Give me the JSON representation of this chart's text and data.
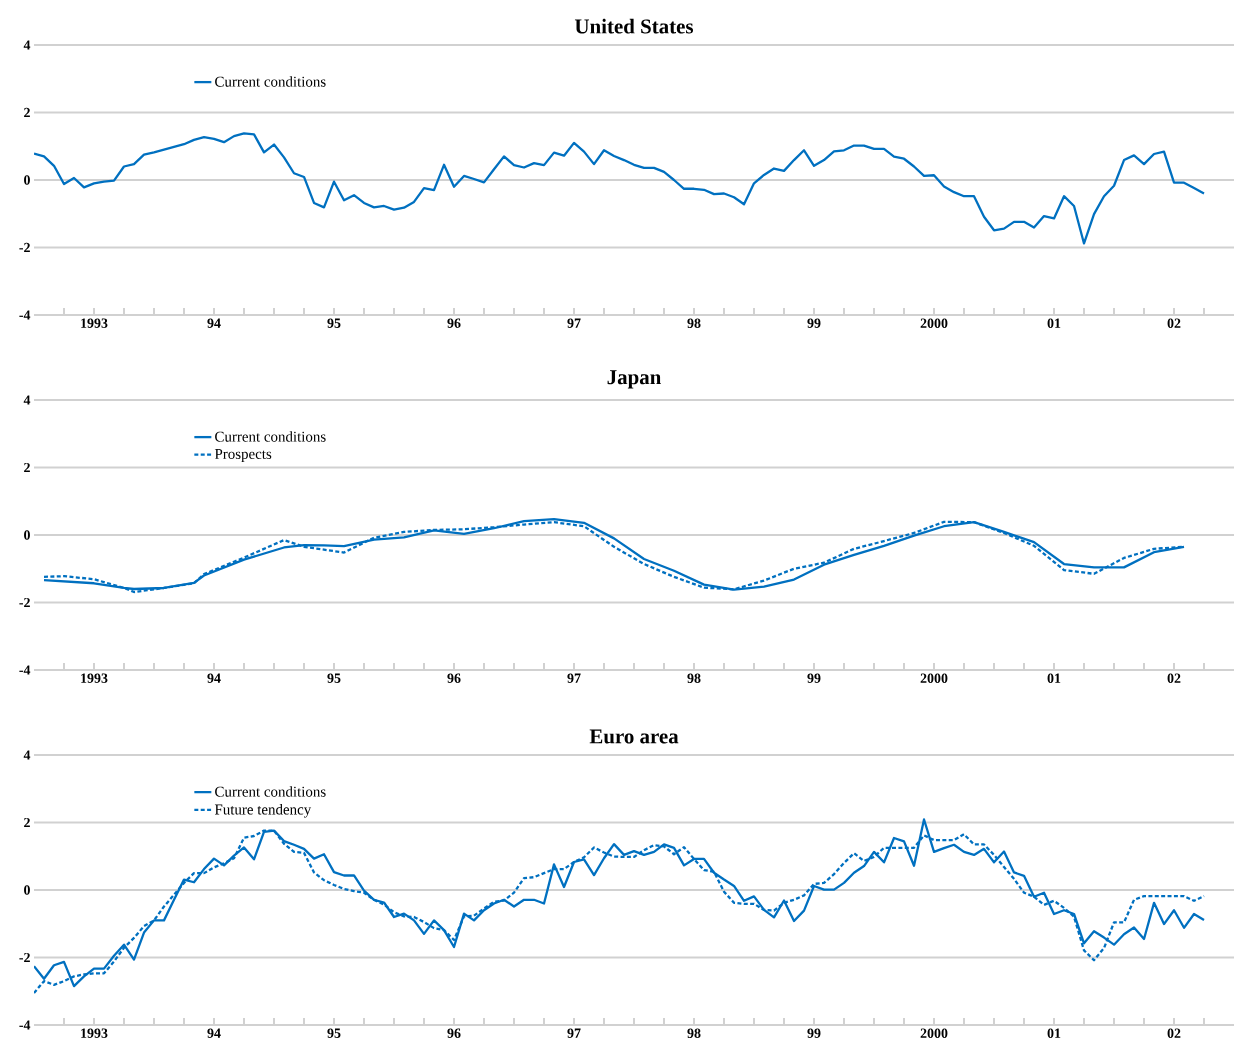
{
  "chart_data": [
    {
      "type": "line",
      "title": "United States",
      "xlim": [
        "1993",
        "2003"
      ],
      "ylim": [
        -4,
        4
      ],
      "yticks": [
        -4,
        -2,
        0,
        2,
        4
      ],
      "grid": "y",
      "legend": "top left",
      "xticks": [
        {
          "value": "1993-04",
          "label": null
        },
        {
          "value": "1993-07",
          "label": "1993"
        },
        {
          "value": "1993-10",
          "label": null
        },
        {
          "value": "1994-01",
          "label": null
        },
        {
          "value": "1994-04",
          "label": null
        },
        {
          "value": "1994-07",
          "label": "94"
        },
        {
          "value": "1994-10",
          "label": null
        },
        {
          "value": "1995-01",
          "label": null
        },
        {
          "value": "1995-04",
          "label": null
        },
        {
          "value": "1995-07",
          "label": "95"
        },
        {
          "value": "1995-10",
          "label": null
        },
        {
          "value": "1996-01",
          "label": null
        },
        {
          "value": "1996-04",
          "label": null
        },
        {
          "value": "1996-07",
          "label": "96"
        },
        {
          "value": "1996-10",
          "label": null
        },
        {
          "value": "1997-01",
          "label": null
        },
        {
          "value": "1997-04",
          "label": null
        },
        {
          "value": "1997-07",
          "label": "97"
        },
        {
          "value": "1997-10",
          "label": null
        },
        {
          "value": "1998-01",
          "label": null
        },
        {
          "value": "1998-04",
          "label": null
        },
        {
          "value": "1998-07",
          "label": "98"
        },
        {
          "value": "1998-10",
          "label": null
        },
        {
          "value": "1999-01",
          "label": null
        },
        {
          "value": "1999-04",
          "label": null
        },
        {
          "value": "1999-07",
          "label": "99"
        },
        {
          "value": "1999-10",
          "label": null
        },
        {
          "value": "2000-01",
          "label": null
        },
        {
          "value": "2000-04",
          "label": null
        },
        {
          "value": "2000-07",
          "label": "2000"
        },
        {
          "value": "2000-10",
          "label": null
        },
        {
          "value": "2001-01",
          "label": null
        },
        {
          "value": "2001-04",
          "label": null
        },
        {
          "value": "2001-07",
          "label": "01"
        },
        {
          "value": "2001-10",
          "label": null
        },
        {
          "value": "2002-01",
          "label": null
        },
        {
          "value": "2002-04",
          "label": null
        },
        {
          "value": "2002-07",
          "label": "02"
        },
        {
          "value": "2002-10",
          "label": null
        }
      ],
      "x": [
        "1993-01",
        "1993-02",
        "1993-03",
        "1993-04",
        "1993-05",
        "1993-06",
        "1993-07",
        "1993-08",
        "1993-09",
        "1993-10",
        "1993-11",
        "1993-12",
        "1994-01",
        "1994-02",
        "1994-03",
        "1994-04",
        "1994-05",
        "1994-06",
        "1994-07",
        "1994-08",
        "1994-09",
        "1994-10",
        "1994-11",
        "1994-12",
        "1995-01",
        "1995-02",
        "1995-03",
        "1995-04",
        "1995-05",
        "1995-06",
        "1995-07",
        "1995-08",
        "1995-09",
        "1995-10",
        "1995-11",
        "1995-12",
        "1996-01",
        "1996-02",
        "1996-03",
        "1996-04",
        "1996-05",
        "1996-06",
        "1996-07",
        "1996-08",
        "1996-09",
        "1996-10",
        "1996-11",
        "1996-12",
        "1997-01",
        "1997-02",
        "1997-03",
        "1997-04",
        "1997-05",
        "1997-06",
        "1997-07",
        "1997-08",
        "1997-09",
        "1997-10",
        "1997-11",
        "1997-12",
        "1998-01",
        "1998-02",
        "1998-03",
        "1998-04",
        "1998-05",
        "1998-06",
        "1998-07",
        "1998-08",
        "1998-09",
        "1998-10",
        "1998-11",
        "1998-12",
        "1999-01",
        "1999-02",
        "1999-03",
        "1999-04",
        "1999-05",
        "1999-06",
        "1999-07",
        "1999-08",
        "1999-09",
        "1999-10",
        "1999-11",
        "1999-12",
        "2000-01",
        "2000-02",
        "2000-03",
        "2000-04",
        "2000-05",
        "2000-06",
        "2000-07",
        "2000-08",
        "2000-09",
        "2000-10",
        "2000-11",
        "2000-12",
        "2001-01",
        "2001-02",
        "2001-03",
        "2001-04",
        "2001-05",
        "2001-06",
        "2001-07",
        "2001-08",
        "2001-09",
        "2001-10",
        "2001-11",
        "2001-12",
        "2002-01",
        "2002-02",
        "2002-03",
        "2002-04",
        "2002-05",
        "2002-06",
        "2002-07",
        "2002-08",
        "2002-09",
        "2002-10"
      ],
      "series": [
        {
          "name": "Current conditions",
          "color": "#0070c0",
          "line_style": "solid",
          "values": [
            0.78,
            0.7,
            0.42,
            -0.12,
            0.06,
            -0.22,
            -0.1,
            -0.05,
            -0.02,
            0.4,
            0.47,
            0.75,
            0.82,
            0.9,
            0.98,
            1.06,
            1.19,
            1.27,
            1.22,
            1.12,
            1.3,
            1.38,
            1.35,
            0.82,
            1.05,
            0.67,
            0.2,
            0.09,
            -0.68,
            -0.81,
            -0.05,
            -0.6,
            -0.45,
            -0.68,
            -0.81,
            -0.77,
            -0.88,
            -0.82,
            -0.65,
            -0.24,
            -0.3,
            0.45,
            -0.2,
            0.12,
            0.03,
            -0.07,
            0.32,
            0.7,
            0.44,
            0.37,
            0.5,
            0.44,
            0.81,
            0.72,
            1.1,
            0.84,
            0.47,
            0.88,
            0.71,
            0.59,
            0.45,
            0.36,
            0.36,
            0.24,
            0.0,
            -0.26,
            -0.26,
            -0.29,
            -0.42,
            -0.4,
            -0.51,
            -0.72,
            -0.1,
            0.15,
            0.34,
            0.27,
            0.59,
            0.88,
            0.42,
            0.59,
            0.85,
            0.88,
            1.02,
            1.02,
            0.92,
            0.92,
            0.69,
            0.63,
            0.4,
            0.12,
            0.14,
            -0.19,
            -0.36,
            -0.48,
            -0.48,
            -1.09,
            -1.49,
            -1.44,
            -1.24,
            -1.24,
            -1.41,
            -1.07,
            -1.14,
            -0.48,
            -0.77,
            -1.88,
            -1.01,
            -0.48,
            -0.17,
            0.59,
            0.73,
            0.47,
            0.77,
            0.84,
            -0.08,
            -0.08,
            -0.24,
            -0.4
          ]
        }
      ]
    },
    {
      "type": "line",
      "title": "Japan",
      "xlim": [
        "1993",
        "2003"
      ],
      "ylim": [
        -4,
        4
      ],
      "yticks": [
        -4,
        -2,
        0,
        2,
        4
      ],
      "grid": "y",
      "legend": "top left",
      "xticks": [
        {
          "value": "1993-04",
          "label": null
        },
        {
          "value": "1993-07",
          "label": "1993"
        },
        {
          "value": "1993-10",
          "label": null
        },
        {
          "value": "1994-01",
          "label": null
        },
        {
          "value": "1994-04",
          "label": null
        },
        {
          "value": "1994-07",
          "label": "94"
        },
        {
          "value": "1994-10",
          "label": null
        },
        {
          "value": "1995-01",
          "label": null
        },
        {
          "value": "1995-04",
          "label": null
        },
        {
          "value": "1995-07",
          "label": "95"
        },
        {
          "value": "1995-10",
          "label": null
        },
        {
          "value": "1996-01",
          "label": null
        },
        {
          "value": "1996-04",
          "label": null
        },
        {
          "value": "1996-07",
          "label": "96"
        },
        {
          "value": "1996-10",
          "label": null
        },
        {
          "value": "1997-01",
          "label": null
        },
        {
          "value": "1997-04",
          "label": null
        },
        {
          "value": "1997-07",
          "label": "97"
        },
        {
          "value": "1997-10",
          "label": null
        },
        {
          "value": "1998-01",
          "label": null
        },
        {
          "value": "1998-04",
          "label": null
        },
        {
          "value": "1998-07",
          "label": "98"
        },
        {
          "value": "1998-10",
          "label": null
        },
        {
          "value": "1999-01",
          "label": null
        },
        {
          "value": "1999-04",
          "label": null
        },
        {
          "value": "1999-07",
          "label": "99"
        },
        {
          "value": "1999-10",
          "label": null
        },
        {
          "value": "2000-01",
          "label": null
        },
        {
          "value": "2000-04",
          "label": null
        },
        {
          "value": "2000-07",
          "label": "2000"
        },
        {
          "value": "2000-10",
          "label": null
        },
        {
          "value": "2001-01",
          "label": null
        },
        {
          "value": "2001-04",
          "label": null
        },
        {
          "value": "2001-07",
          "label": "01"
        },
        {
          "value": "2001-10",
          "label": null
        },
        {
          "value": "2002-01",
          "label": null
        },
        {
          "value": "2002-04",
          "label": null
        },
        {
          "value": "2002-07",
          "label": "02"
        },
        {
          "value": "2002-10",
          "label": null
        }
      ],
      "series": [
        {
          "name": "Current conditions",
          "color": "#0070c0",
          "line_style": "solid",
          "x": [
            "1993-02",
            "1993-07",
            "1993-08",
            "1993-10",
            "1993-11",
            "1994-02",
            "1994-05",
            "1994-06",
            "1994-10",
            "1995-02",
            "1995-04",
            "1995-06",
            "1995-08",
            "1995-11",
            "1996-02",
            "1996-05",
            "1996-08",
            "1996-11",
            "1997-02",
            "1997-05",
            "1997-08",
            "1997-11",
            "1998-02",
            "1998-05",
            "1998-08",
            "1998-11",
            "1999-02",
            "1999-05",
            "1999-08",
            "1999-11",
            "2000-02",
            "2000-05",
            "2000-08",
            "2000-11",
            "2001-02",
            "2001-05",
            "2001-08",
            "2001-11",
            "2002-02",
            "2002-05",
            "2002-08"
          ],
          "values": [
            -1.34,
            -1.43,
            -1.48,
            -1.57,
            -1.6,
            -1.57,
            -1.42,
            -1.2,
            -0.73,
            -0.37,
            -0.3,
            -0.31,
            -0.33,
            -0.14,
            -0.07,
            0.14,
            0.03,
            0.2,
            0.41,
            0.47,
            0.36,
            -0.1,
            -0.71,
            -1.06,
            -1.47,
            -1.62,
            -1.53,
            -1.32,
            -0.88,
            -0.59,
            -0.32,
            -0.02,
            0.26,
            0.38,
            0.09,
            -0.21,
            -0.86,
            -0.96,
            -0.96,
            -0.51,
            -0.35
          ]
        },
        {
          "name": "Prospects",
          "color": "#0070c0",
          "line_style": "dashed",
          "x": [
            "1993-02",
            "1993-04",
            "1993-07",
            "1993-10",
            "1993-11",
            "1994-02",
            "1994-05",
            "1994-06",
            "1994-10",
            "1995-02",
            "1995-04",
            "1995-08",
            "1995-11",
            "1996-02",
            "1996-05",
            "1996-08",
            "1996-11",
            "1997-02",
            "1997-05",
            "1997-08",
            "1997-11",
            "1998-02",
            "1998-05",
            "1998-08",
            "1998-11",
            "1999-02",
            "1999-05",
            "1999-08",
            "1999-11",
            "2000-02",
            "2000-05",
            "2000-08",
            "2000-11",
            "2001-02",
            "2001-05",
            "2001-08",
            "2001-11",
            "2002-02",
            "2002-05",
            "2002-08"
          ],
          "values": [
            -1.24,
            -1.22,
            -1.31,
            -1.57,
            -1.69,
            -1.57,
            -1.43,
            -1.16,
            -0.67,
            -0.15,
            -0.35,
            -0.52,
            -0.08,
            0.09,
            0.15,
            0.17,
            0.23,
            0.31,
            0.38,
            0.26,
            -0.35,
            -0.86,
            -1.24,
            -1.56,
            -1.61,
            -1.35,
            -1.0,
            -0.82,
            -0.41,
            -0.18,
            0.06,
            0.39,
            0.38,
            0.06,
            -0.32,
            -1.04,
            -1.15,
            -0.68,
            -0.41,
            -0.35
          ]
        }
      ]
    },
    {
      "type": "line",
      "title": "Euro area",
      "xlim": [
        "1993",
        "2003"
      ],
      "ylim": [
        -4,
        4
      ],
      "yticks": [
        -4,
        -2,
        0,
        2,
        4
      ],
      "grid": "y",
      "legend": "top left",
      "xticks": [
        {
          "value": "1993-04",
          "label": null
        },
        {
          "value": "1993-07",
          "label": "1993"
        },
        {
          "value": "1993-10",
          "label": null
        },
        {
          "value": "1994-01",
          "label": null
        },
        {
          "value": "1994-04",
          "label": null
        },
        {
          "value": "1994-07",
          "label": "94"
        },
        {
          "value": "1994-10",
          "label": null
        },
        {
          "value": "1995-01",
          "label": null
        },
        {
          "value": "1995-04",
          "label": null
        },
        {
          "value": "1995-07",
          "label": "95"
        },
        {
          "value": "1995-10",
          "label": null
        },
        {
          "value": "1996-01",
          "label": null
        },
        {
          "value": "1996-04",
          "label": null
        },
        {
          "value": "1996-07",
          "label": "96"
        },
        {
          "value": "1996-10",
          "label": null
        },
        {
          "value": "1997-01",
          "label": null
        },
        {
          "value": "1997-04",
          "label": null
        },
        {
          "value": "1997-07",
          "label": "97"
        },
        {
          "value": "1997-10",
          "label": null
        },
        {
          "value": "1998-01",
          "label": null
        },
        {
          "value": "1998-04",
          "label": null
        },
        {
          "value": "1998-07",
          "label": "98"
        },
        {
          "value": "1998-10",
          "label": null
        },
        {
          "value": "1999-01",
          "label": null
        },
        {
          "value": "1999-04",
          "label": null
        },
        {
          "value": "1999-07",
          "label": "99"
        },
        {
          "value": "1999-10",
          "label": null
        },
        {
          "value": "2000-01",
          "label": null
        },
        {
          "value": "2000-04",
          "label": null
        },
        {
          "value": "2000-07",
          "label": "2000"
        },
        {
          "value": "2000-10",
          "label": null
        },
        {
          "value": "2001-01",
          "label": null
        },
        {
          "value": "2001-04",
          "label": null
        },
        {
          "value": "2001-07",
          "label": "01"
        },
        {
          "value": "2001-10",
          "label": null
        },
        {
          "value": "2002-01",
          "label": null
        },
        {
          "value": "2002-04",
          "label": null
        },
        {
          "value": "2002-07",
          "label": "02"
        },
        {
          "value": "2002-10",
          "label": null
        }
      ],
      "x": [
        "1993-01",
        "1993-02",
        "1993-03",
        "1993-04",
        "1993-05",
        "1993-06",
        "1993-07",
        "1993-08",
        "1993-09",
        "1993-10",
        "1993-11",
        "1993-12",
        "1994-01",
        "1994-02",
        "1994-03",
        "1994-04",
        "1994-05",
        "1994-06",
        "1994-07",
        "1994-08",
        "1994-09",
        "1994-10",
        "1994-11",
        "1994-12",
        "1995-01",
        "1995-02",
        "1995-03",
        "1995-04",
        "1995-05",
        "1995-06",
        "1995-07",
        "1995-08",
        "1995-09",
        "1995-10",
        "1995-11",
        "1995-12",
        "1996-01",
        "1996-02",
        "1996-03",
        "1996-04",
        "1996-05",
        "1996-06",
        "1996-07",
        "1996-08",
        "1996-09",
        "1996-10",
        "1996-11",
        "1996-12",
        "1997-01",
        "1997-02",
        "1997-03",
        "1997-04",
        "1997-05",
        "1997-06",
        "1997-07",
        "1997-08",
        "1997-09",
        "1997-10",
        "1997-11",
        "1997-12",
        "1998-01",
        "1998-02",
        "1998-03",
        "1998-04",
        "1998-05",
        "1998-06",
        "1998-07",
        "1998-08",
        "1998-09",
        "1998-10",
        "1998-11",
        "1998-12",
        "1999-01",
        "1999-02",
        "1999-03",
        "1999-04",
        "1999-05",
        "1999-06",
        "1999-07",
        "1999-08",
        "1999-09",
        "1999-10",
        "1999-11",
        "1999-12",
        "2000-01",
        "2000-02",
        "2000-03",
        "2000-04",
        "2000-05",
        "2000-06",
        "2000-07",
        "2000-08",
        "2000-09",
        "2000-10",
        "2000-11",
        "2000-12",
        "2001-01",
        "2001-02",
        "2001-03",
        "2001-04",
        "2001-05",
        "2001-06",
        "2001-07",
        "2001-08",
        "2001-09",
        "2001-10",
        "2001-11",
        "2001-12",
        "2002-01",
        "2002-02",
        "2002-03",
        "2002-04",
        "2002-05",
        "2002-06",
        "2002-07",
        "2002-08",
        "2002-09",
        "2002-10"
      ],
      "series": [
        {
          "name": "Current conditions",
          "color": "#0070c0",
          "line_style": "solid",
          "values": [
            -2.26,
            -2.63,
            -2.23,
            -2.13,
            -2.85,
            -2.56,
            -2.33,
            -2.33,
            -1.95,
            -1.62,
            -2.06,
            -1.26,
            -0.9,
            -0.9,
            -0.29,
            0.31,
            0.23,
            0.62,
            0.93,
            0.73,
            1.02,
            1.26,
            0.91,
            1.72,
            1.76,
            1.45,
            1.34,
            1.22,
            0.93,
            1.06,
            0.53,
            0.43,
            0.43,
            -0.02,
            -0.29,
            -0.37,
            -0.8,
            -0.7,
            -0.9,
            -1.3,
            -0.9,
            -1.19,
            -1.69,
            -0.7,
            -0.9,
            -0.6,
            -0.4,
            -0.29,
            -0.49,
            -0.29,
            -0.29,
            -0.4,
            0.76,
            0.09,
            0.83,
            0.91,
            0.44,
            0.94,
            1.36,
            1.04,
            1.15,
            1.04,
            1.13,
            1.35,
            1.25,
            0.73,
            0.92,
            0.92,
            0.51,
            0.31,
            0.12,
            -0.32,
            -0.19,
            -0.59,
            -0.81,
            -0.31,
            -0.92,
            -0.61,
            0.12,
            0.01,
            0.01,
            0.21,
            0.51,
            0.71,
            1.13,
            0.82,
            1.54,
            1.44,
            0.72,
            2.09,
            1.13,
            1.24,
            1.34,
            1.13,
            1.04,
            1.22,
            0.82,
            1.14,
            0.52,
            0.42,
            -0.2,
            -0.08,
            -0.71,
            -0.6,
            -0.71,
            -1.58,
            -1.22,
            -1.41,
            -1.62,
            -1.31,
            -1.11,
            -1.45,
            -0.38,
            -1.01,
            -0.6,
            -1.12,
            -0.71,
            -0.89
          ]
        },
        {
          "name": "Future tendency",
          "color": "#0070c0",
          "line_style": "dashed",
          "values": [
            -3.05,
            -2.7,
            -2.81,
            -2.7,
            -2.56,
            -2.5,
            -2.47,
            -2.47,
            -2.12,
            -1.71,
            -1.42,
            -1.07,
            -0.9,
            -0.49,
            -0.14,
            0.21,
            0.5,
            0.5,
            0.67,
            0.79,
            0.94,
            1.55,
            1.6,
            1.76,
            1.76,
            1.37,
            1.13,
            1.1,
            0.52,
            0.29,
            0.15,
            0.03,
            -0.03,
            -0.08,
            -0.29,
            -0.43,
            -0.66,
            -0.78,
            -0.8,
            -0.95,
            -1.13,
            -1.19,
            -1.48,
            -0.78,
            -0.76,
            -0.55,
            -0.35,
            -0.31,
            -0.08,
            0.35,
            0.38,
            0.5,
            0.62,
            0.62,
            0.83,
            0.97,
            1.26,
            1.11,
            0.99,
            0.98,
            0.98,
            1.18,
            1.33,
            1.29,
            1.06,
            1.27,
            0.92,
            0.59,
            0.54,
            -0.05,
            -0.38,
            -0.41,
            -0.41,
            -0.59,
            -0.61,
            -0.38,
            -0.29,
            -0.16,
            0.18,
            0.21,
            0.47,
            0.8,
            1.09,
            0.86,
            0.98,
            1.25,
            1.25,
            1.25,
            1.25,
            1.62,
            1.48,
            1.48,
            1.48,
            1.65,
            1.35,
            1.35,
            1.04,
            0.68,
            0.33,
            -0.08,
            -0.2,
            -0.44,
            -0.32,
            -0.53,
            -0.79,
            -1.79,
            -2.08,
            -1.72,
            -0.96,
            -0.96,
            -0.29,
            -0.18,
            -0.18,
            -0.18,
            -0.18,
            -0.18,
            -0.32,
            -0.18
          ]
        }
      ]
    }
  ]
}
